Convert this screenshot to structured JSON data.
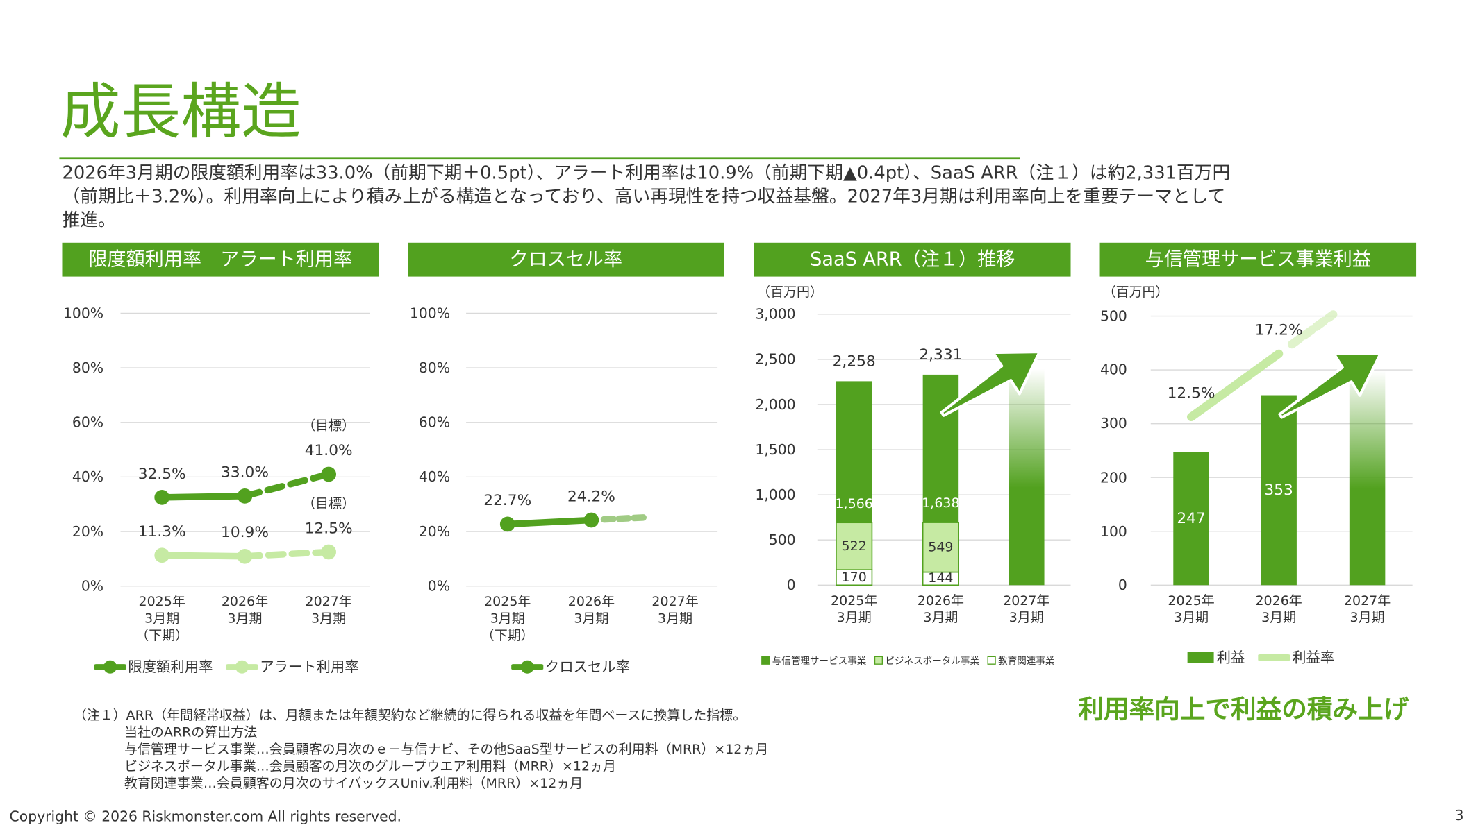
{
  "title": "成長構造",
  "description": [
    "2026年3月期の限度額利用率は33.0%（前期下期＋0.5pt）、アラート利用率は10.9%（前期下期▲0.4pt）、SaaS ARR（注１）は約2,331百万円",
    "（前期比＋3.2%）。利用率向上により積み上がる構造となっており、高い再現性を持つ収益基盤。2027年3月期は利用率向上を重要テーマとして",
    "推進。"
  ],
  "chart_data": [
    {
      "type": "line",
      "title": "限度額利用率　アラート利用率",
      "categories": [
        "2025年\n3月期\n（下期）",
        "2026年\n3月期",
        "2027年\n3月期"
      ],
      "series": [
        {
          "name": "限度額利用率",
          "color": "#52a11f",
          "values": [
            32.5,
            33.0,
            41.0
          ],
          "value_labels": [
            "32.5%",
            "33.0%",
            "41.0%"
          ]
        },
        {
          "name": "アラート利用率",
          "color": "#c6eaa3",
          "values": [
            11.3,
            10.9,
            12.5
          ],
          "value_labels": [
            "11.3%",
            "10.9%",
            "12.5%"
          ]
        }
      ],
      "annotations": [
        "（目標）",
        "（目標）"
      ],
      "dashed_from": 1,
      "ylim": [
        0,
        100
      ],
      "yticks": [
        {
          "value": 0,
          "label": "0%"
        },
        {
          "value": 20,
          "label": "20%"
        },
        {
          "value": 40,
          "label": "40%"
        },
        {
          "value": 60,
          "label": "60%"
        },
        {
          "value": 80,
          "label": "80%"
        },
        {
          "value": 100,
          "label": "100%"
        }
      ],
      "grid": true,
      "legend": "bottom"
    },
    {
      "type": "line",
      "title": "クロスセル率",
      "categories": [
        "2025年\n3月期\n（下期）",
        "2026年\n3月期",
        "2027年\n3月期"
      ],
      "series": [
        {
          "name": "クロスセル率",
          "color": "#52a11f",
          "values": [
            22.7,
            24.2,
            null
          ],
          "value_labels": [
            "22.7%",
            "24.2%",
            null
          ]
        }
      ],
      "ylim": [
        0,
        100
      ],
      "yticks": [
        {
          "value": 0,
          "label": "0%"
        },
        {
          "value": 20,
          "label": "20%"
        },
        {
          "value": 40,
          "label": "40%"
        },
        {
          "value": 60,
          "label": "60%"
        },
        {
          "value": 80,
          "label": "80%"
        },
        {
          "value": 100,
          "label": "100%"
        }
      ],
      "grid": true,
      "legend": "bottom"
    },
    {
      "type": "bar",
      "stacked": true,
      "title": "SaaS ARR（注１）推移",
      "y_label": "（百万円）",
      "categories": [
        "2025年\n3月期",
        "2026年\n3月期",
        "2027年\n3月期"
      ],
      "series": [
        {
          "name": "与信管理サービス事業",
          "color": "#52a11f",
          "values": [
            1566,
            1638,
            null
          ],
          "value_labels": [
            "1,566",
            "1,638",
            null
          ]
        },
        {
          "name": "ビジネスポータル事業",
          "color": "#c6eaa3",
          "edge": "#52a11f",
          "values": [
            522,
            549,
            null
          ],
          "value_labels": [
            "522",
            "549",
            null
          ]
        },
        {
          "name": "教育関連事業",
          "color": "#ffffff",
          "edge": "#52a11f",
          "values": [
            170,
            144,
            null
          ],
          "value_labels": [
            "170",
            "144",
            null
          ]
        }
      ],
      "totals": [
        2258,
        2331,
        null
      ],
      "total_labels": [
        "2,258",
        "2,331",
        null
      ],
      "ylim": [
        0,
        3000
      ],
      "yticks": [
        0,
        500,
        {
          "value": 1000,
          "label": "1,000"
        },
        {
          "value": 1500,
          "label": "1,500"
        },
        {
          "value": 2000,
          "label": "2,000"
        },
        {
          "value": 2500,
          "label": "2,500"
        },
        {
          "value": 3000,
          "label": "3,000"
        }
      ],
      "grid": true,
      "legend": "bottom"
    },
    {
      "type": "bar",
      "title": "与信管理サービス事業利益",
      "y_label": "（百万円）",
      "categories": [
        "2025年\n3月期",
        "2026年\n3月期",
        "2027年\n3月期"
      ],
      "series": [
        {
          "name": "利益",
          "color": "#52a11f",
          "values": [
            247,
            353,
            null
          ]
        },
        {
          "name": "利益率",
          "type": "line",
          "axis": "y2",
          "color": "#c6eaa3",
          "values": [
            12.5,
            17.2,
            null
          ],
          "value_labels": [
            "12.5%",
            "17.2%",
            null
          ]
        }
      ],
      "ylim": [
        0,
        500
      ],
      "yticks": [
        0,
        100,
        200,
        300,
        400,
        500
      ],
      "y2lim": [
        0,
        20
      ],
      "grid": true,
      "legend": "bottom"
    }
  ],
  "notes": [
    "（注１）ARR（年間経常収益）は、月額または年額契約など継続的に得られる収益を年間ベースに換算した指標。",
    "当社のARRの算出方法",
    "与信管理サービス事業…会員顧客の月次のｅ－与信ナビ、その他SaaS型サービスの利用料（MRR）×12ヵ月",
    "ビジネスポータル事業…会員顧客の月次のグループウエア利用料（MRR）×12ヵ月",
    "教育関連事業…会員顧客の月次のサイバックスUniv.利用料（MRR）×12ヵ月"
  ],
  "tagline": "利用率向上で利益の積み上げ",
  "copyright": "Copyright © 2026 Riskmonster.com  All rights reserved.",
  "page_number": "3"
}
